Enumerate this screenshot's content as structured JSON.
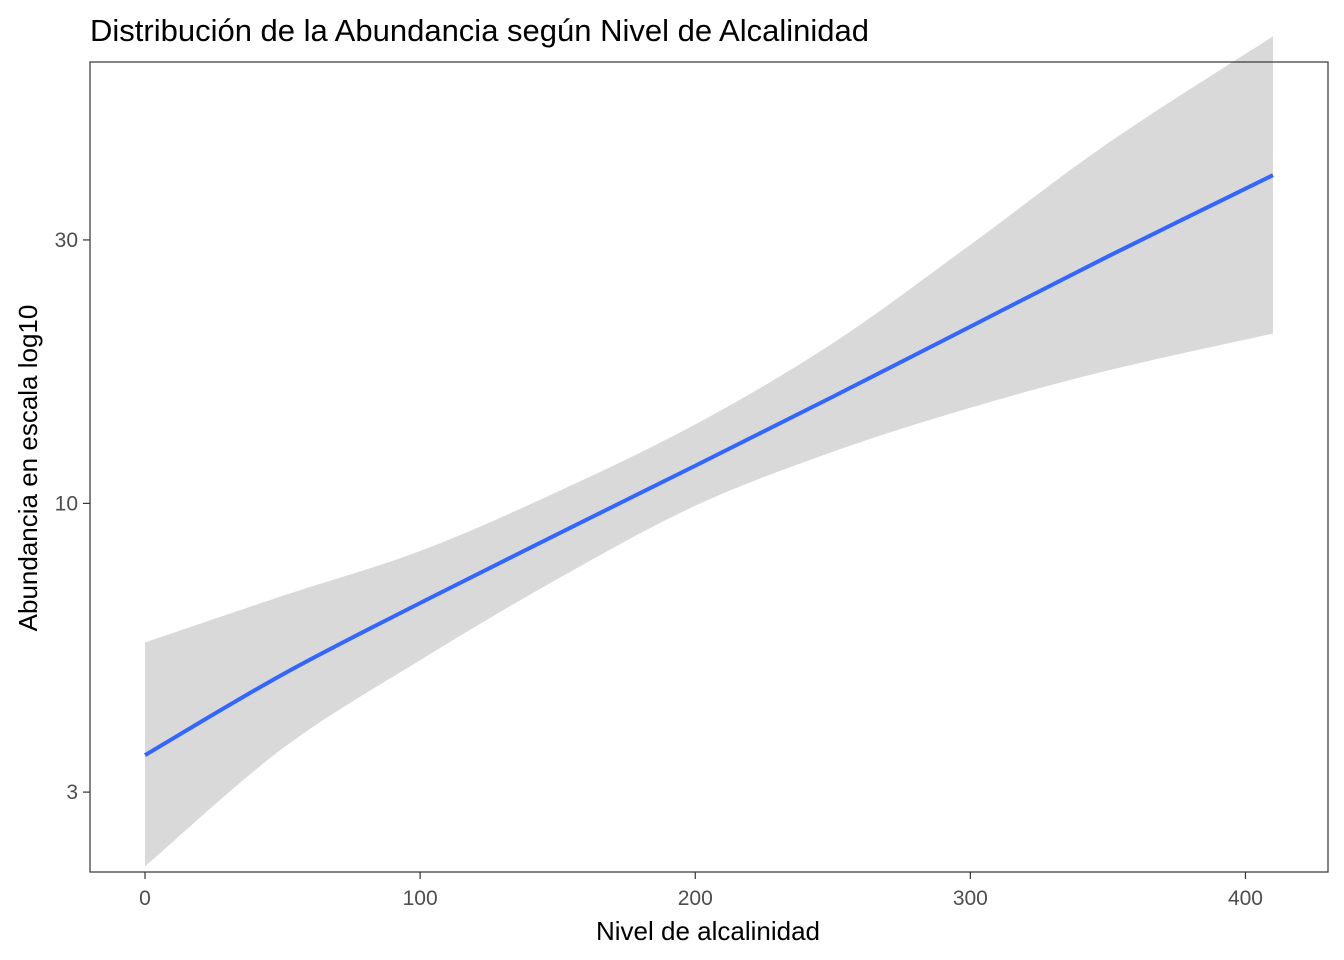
{
  "chart_data": {
    "type": "line",
    "title": "Distribución de la Abundancia según Nivel de Alcalinidad",
    "xlabel": "Nivel de alcalinidad",
    "ylabel": "Abundancia en escala log10",
    "y_scale": "log10",
    "xlim": [
      -20,
      430
    ],
    "ylim": [
      2.15,
      63
    ],
    "x_ticks": [
      0,
      100,
      200,
      300,
      400
    ],
    "x_tick_labels": [
      "0",
      "100",
      "200",
      "300",
      "400"
    ],
    "y_ticks": [
      3,
      10,
      30
    ],
    "y_tick_labels": [
      "3",
      "10",
      "30"
    ],
    "grid": false,
    "legend": "none",
    "series": [
      {
        "color": "#3366FF",
        "ribbon_color": "#D9D9D9",
        "x": [
          0,
          50,
          100,
          150,
          200,
          250,
          300,
          350,
          410
        ],
        "y": [
          3.5,
          4.9,
          6.6,
          8.8,
          11.7,
          15.6,
          20.9,
          28.0,
          39.3
        ],
        "lower": [
          2.2,
          3.6,
          5.2,
          7.3,
          9.9,
          12.4,
          14.9,
          17.4,
          20.3
        ],
        "upper": [
          5.6,
          6.8,
          8.2,
          10.5,
          13.9,
          19.5,
          29.4,
          44.9,
          70.1
        ]
      }
    ]
  }
}
